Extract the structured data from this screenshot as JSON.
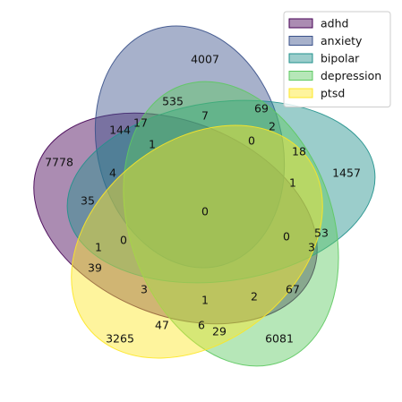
{
  "chart_data": {
    "type": "venn",
    "sets": [
      {
        "name": "adhd",
        "color": "#440154"
      },
      {
        "name": "anxiety",
        "color": "#3b528b"
      },
      {
        "name": "bipolar",
        "color": "#21918c"
      },
      {
        "name": "depression",
        "color": "#5ec962"
      },
      {
        "name": "ptsd",
        "color": "#fde725"
      }
    ],
    "fill_alpha": 0.45,
    "legend_position": "top-right",
    "region_labels": [
      {
        "region": "adhd",
        "value": "7778"
      },
      {
        "region": "anxiety",
        "value": "4007"
      },
      {
        "region": "bipolar",
        "value": "1457"
      },
      {
        "region": "depression",
        "value": "6081"
      },
      {
        "region": "ptsd",
        "value": "3265"
      },
      {
        "region": "adhd&anxiety",
        "value": "144"
      },
      {
        "region": "adhd&anxiety&depression",
        "value": "17"
      },
      {
        "region": "anxiety&depression",
        "value": "535"
      },
      {
        "region": "anxiety&bipolar&depression",
        "value": "7"
      },
      {
        "region": "anxiety&bipolar",
        "value": "69"
      },
      {
        "region": "anxiety&bipolar&ptsd",
        "value": "2"
      },
      {
        "region": "anxiety&bipolar&depression&ptsd",
        "value": "0"
      },
      {
        "region": "anxiety&ptsd",
        "value": "18"
      },
      {
        "region": "adhd&anxiety&bipolar&depression",
        "value": "1"
      },
      {
        "region": "adhd&anxiety&bipolar",
        "value": "4"
      },
      {
        "region": "bipolar&ptsd",
        "value": "1"
      },
      {
        "region": "adhd&bipolar",
        "value": "35"
      },
      {
        "region": "adhd&anxiety&bipolar&depression&ptsd",
        "value": "0"
      },
      {
        "region": "adhd&bipolar&depression",
        "value": "1"
      },
      {
        "region": "adhd&bipolar&depression&ptsd",
        "value": "0"
      },
      {
        "region": "bipolar&depression",
        "value": "53"
      },
      {
        "region": "adhd&anxiety&bipolar&ptsd",
        "value": "0"
      },
      {
        "region": "bipolar&depression&ptsd",
        "value": "3"
      },
      {
        "region": "adhd&depression",
        "value": "39"
      },
      {
        "region": "adhd&depression&ptsd",
        "value": "3"
      },
      {
        "region": "adhd&ptsd",
        "value": "67"
      },
      {
        "region": "adhd&anxiety&depression&ptsd",
        "value": "1"
      },
      {
        "region": "adhd&bipolar&ptsd",
        "value": "2"
      },
      {
        "region": "depression&ptsd",
        "value": "47"
      },
      {
        "region": "anxiety&depression&ptsd",
        "value": "6"
      },
      {
        "region": "adhd&anxiety&ptsd",
        "value": "29"
      }
    ]
  }
}
